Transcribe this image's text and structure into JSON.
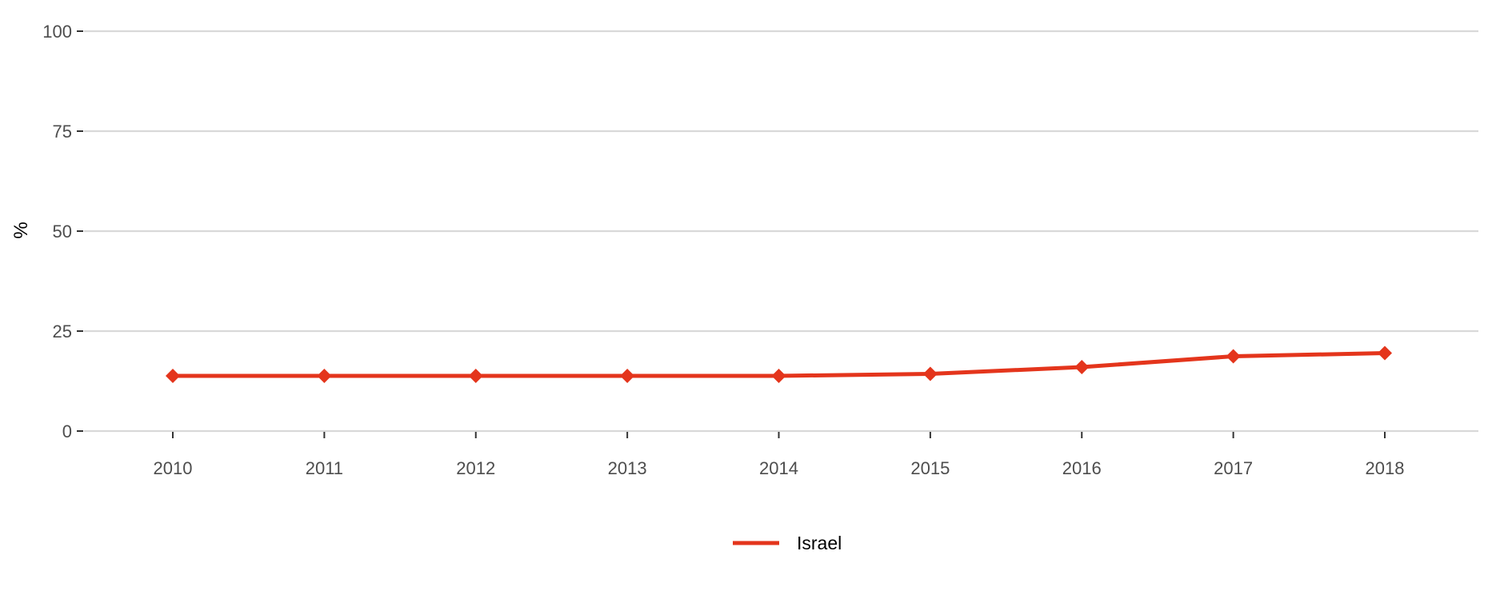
{
  "chart_data": {
    "type": "line",
    "title": "",
    "xlabel": "",
    "ylabel": "%",
    "x": [
      "2010",
      "2011",
      "2012",
      "2013",
      "2014",
      "2015",
      "2016",
      "2017",
      "2018"
    ],
    "series": [
      {
        "name": "Israel",
        "color": "#e4351c",
        "marker": "diamond",
        "values": [
          13.8,
          13.8,
          13.8,
          13.8,
          13.8,
          14.3,
          16.0,
          18.7,
          19.5
        ]
      }
    ],
    "ylim": [
      0,
      100
    ],
    "yticks": [
      0,
      25,
      50,
      75,
      100
    ],
    "grid": "horizontal",
    "legend_position": "bottom"
  }
}
